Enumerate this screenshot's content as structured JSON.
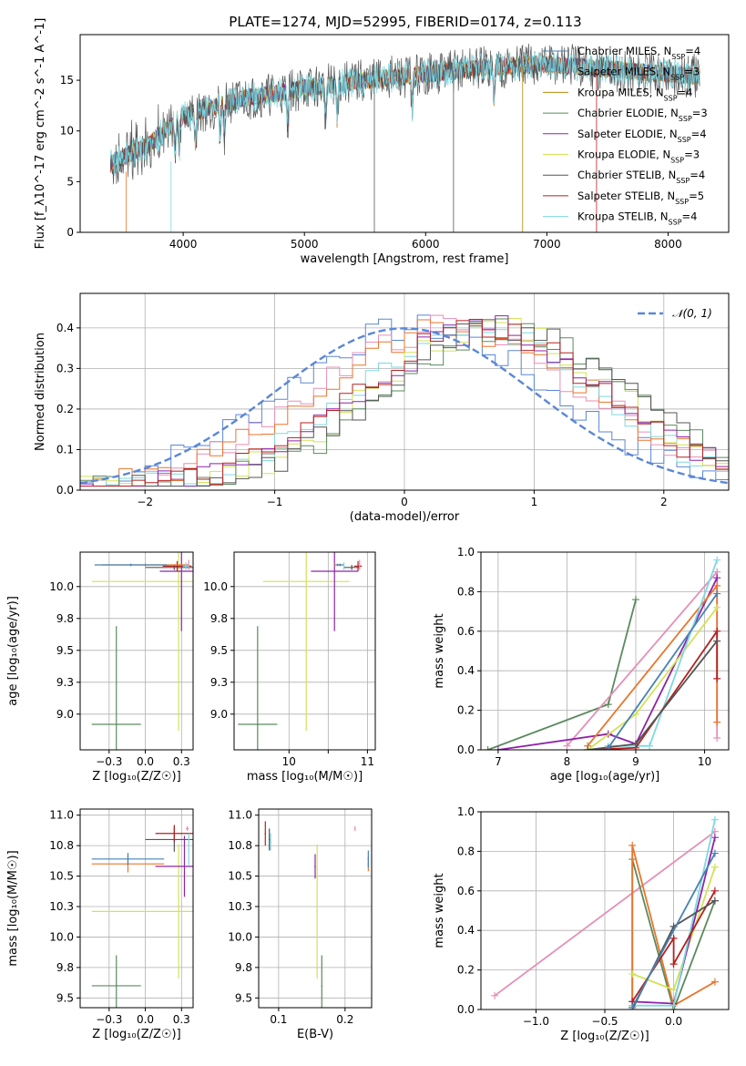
{
  "title": "PLATE=1274, MJD=52995, FIBERID=0174, z=0.113",
  "colors": {
    "chab_miles": "#4682b4",
    "salp_miles": "#e8762c",
    "krou_miles": "#b8860b",
    "chab_elodie": "#5b8a5e",
    "salp_elodie": "#8e24aa",
    "krou_elodie": "#d4e157",
    "chab_stelib": "#555555",
    "salp_stelib": "#b22222",
    "krou_stelib": "#7fd8e0",
    "pink": "#e58fb5",
    "normal": "#5b87d6",
    "grid": "#b0b0b0"
  },
  "legend": [
    {
      "key": "chab_miles",
      "imf": "Chabrier",
      "lib": "MILES",
      "n": "4"
    },
    {
      "key": "salp_miles",
      "imf": "Salpeter",
      "lib": "MILES",
      "n": "3"
    },
    {
      "key": "krou_miles",
      "imf": "Kroupa",
      "lib": "MILES",
      "n": "4"
    },
    {
      "key": "chab_elodie",
      "imf": "Chabrier",
      "lib": "ELODIE",
      "n": "3"
    },
    {
      "key": "salp_elodie",
      "imf": "Salpeter",
      "lib": "ELODIE",
      "n": "4"
    },
    {
      "key": "krou_elodie",
      "imf": "Kroupa",
      "lib": "ELODIE",
      "n": "3"
    },
    {
      "key": "chab_stelib",
      "imf": "Chabrier",
      "lib": "STELIB",
      "n": "4"
    },
    {
      "key": "salp_stelib",
      "imf": "Salpeter",
      "lib": "STELIB",
      "n": "5"
    },
    {
      "key": "krou_stelib",
      "imf": "Kroupa",
      "lib": "STELIB",
      "n": "4"
    }
  ],
  "chart_data": [
    {
      "id": "spectrum",
      "type": "line",
      "xlabel": "wavelength [Angstrom, rest frame]",
      "ylabel": "Flux [f_λ10^-17 erg cm^-2 s^-1 A^-1]",
      "xlim": [
        3150,
        8500
      ],
      "ylim": [
        0,
        19.5
      ],
      "xticks": [
        4000,
        5000,
        6000,
        7000,
        8000
      ],
      "yticks": [
        0,
        5,
        10,
        15
      ],
      "wave_range": [
        3400,
        8260
      ],
      "continuum": [
        [
          3400,
          6.8
        ],
        [
          3700,
          8.5
        ],
        [
          4000,
          11.5
        ],
        [
          4500,
          13.2
        ],
        [
          5000,
          14.2
        ],
        [
          5500,
          15.0
        ],
        [
          6000,
          15.6
        ],
        [
          6500,
          16.3
        ],
        [
          7000,
          16.6
        ],
        [
          7500,
          16.1
        ],
        [
          8000,
          15.6
        ],
        [
          8260,
          15.4
        ]
      ],
      "absorption_lines": [
        3934,
        3968,
        4102,
        4305,
        4340,
        4861,
        5175,
        5270,
        5890,
        6563
      ],
      "spikes": [
        5577,
        6230,
        6800,
        7410
      ]
    },
    {
      "id": "residuals",
      "type": "line",
      "xlabel": "(data-model)/error",
      "ylabel": "Normed distribution",
      "xlim": [
        -2.5,
        2.5
      ],
      "ylim": [
        0,
        0.485
      ],
      "xticks": [
        -2,
        -1,
        0,
        1,
        2
      ],
      "yticks": [
        0.0,
        0.1,
        0.2,
        0.3,
        0.4
      ],
      "legend_label": "𝒩(0, 1)",
      "bin_width": 0.1,
      "model_center": 0.55,
      "model_sigma": 1.0
    },
    {
      "id": "age-vs-Z",
      "type": "scatter",
      "xlabel": "Z [log₁₀(Z/Z☉)]",
      "ylabel": "age  [log₁₀(age/yr)]",
      "xlim": [
        -0.45,
        0.33
      ],
      "ylim": [
        8.72,
        10.27
      ],
      "xticks": [
        -0.25,
        0.0,
        0.25
      ],
      "yticks": [
        9.0,
        9.25,
        9.5,
        9.75,
        10.0
      ],
      "points": [
        {
          "key": "chab_elodie",
          "x": -0.2,
          "y": 8.92,
          "xerr": 0.17,
          "yerr": 0.77
        },
        {
          "key": "krou_elodie",
          "x": 0.23,
          "y": 10.04,
          "xerr": 0.6,
          "yerr": 1.17
        },
        {
          "key": "salp_elodie",
          "x": 0.25,
          "y": 10.12,
          "xerr": 0.15,
          "yerr": 0.47
        },
        {
          "key": "chab_stelib",
          "x": 0.2,
          "y": 10.15,
          "xerr": 0.2,
          "yerr": 0.02
        },
        {
          "key": "salp_stelib",
          "x": 0.22,
          "y": 10.16,
          "xerr": 0.1,
          "yerr": 0.04
        },
        {
          "key": "salp_miles",
          "x": 0.0,
          "y": 10.17,
          "xerr": 0.3,
          "yerr": 0.01
        },
        {
          "key": "chab_miles",
          "x": -0.1,
          "y": 10.17,
          "xerr": 0.25,
          "yerr": 0.01
        },
        {
          "key": "pink",
          "x": 0.3,
          "y": 10.17,
          "xerr": 0.0,
          "yerr": 0.04
        },
        {
          "key": "krou_stelib",
          "x": 0.28,
          "y": 10.16,
          "xerr": 0.02,
          "yerr": 0.03
        }
      ]
    },
    {
      "id": "age-vs-mass",
      "type": "scatter",
      "xlabel": "mass [log₁₀(M/M☉)]",
      "ylabel": "",
      "xlim": [
        9.3,
        11.1
      ],
      "ylim": [
        8.72,
        10.27
      ],
      "xticks": [
        10,
        10.5,
        11
      ],
      "tick_labels": [
        "10",
        "",
        "11"
      ],
      "yticks": [
        9.0,
        9.25,
        9.5,
        9.75,
        10.0
      ],
      "points": [
        {
          "key": "chab_elodie",
          "x": 9.6,
          "y": 8.92,
          "xerr": 0.25,
          "yerr": 0.77
        },
        {
          "key": "krou_elodie",
          "x": 10.22,
          "y": 10.04,
          "xerr": 0.55,
          "yerr": 1.17
        },
        {
          "key": "salp_elodie",
          "x": 10.58,
          "y": 10.12,
          "xerr": 0.3,
          "yerr": 0.47
        },
        {
          "key": "chab_stelib",
          "x": 10.8,
          "y": 10.15,
          "xerr": 0.1,
          "yerr": 0.02
        },
        {
          "key": "salp_stelib",
          "x": 10.88,
          "y": 10.16,
          "xerr": 0.05,
          "yerr": 0.04
        },
        {
          "key": "salp_miles",
          "x": 10.62,
          "y": 10.17,
          "xerr": 0.05,
          "yerr": 0.01
        },
        {
          "key": "chab_miles",
          "x": 10.65,
          "y": 10.17,
          "xerr": 0.05,
          "yerr": 0.01
        },
        {
          "key": "pink",
          "x": 10.9,
          "y": 10.17,
          "xerr": 0.0,
          "yerr": 0.04
        },
        {
          "key": "krou_stelib",
          "x": 10.7,
          "y": 10.16,
          "xerr": 0.0,
          "yerr": 0.03
        }
      ]
    },
    {
      "id": "mass-weight-vs-age",
      "type": "line",
      "xlabel": "age  [log₁₀(age/yr)]",
      "ylabel": "mass weight",
      "xlim": [
        6.75,
        10.35
      ],
      "ylim": [
        0.0,
        1.0
      ],
      "xticks": [
        7,
        8,
        9,
        10
      ],
      "yticks": [
        0.0,
        0.2,
        0.4,
        0.6,
        0.8,
        1.0
      ],
      "series": [
        {
          "key": "chab_elodie",
          "x": [
            6.85,
            8.6,
            9.0
          ],
          "y": [
            0.0,
            0.23,
            0.76
          ]
        },
        {
          "key": "pink",
          "x": [
            8.0,
            10.18,
            10.18
          ],
          "y": [
            0.02,
            0.9,
            0.06
          ]
        },
        {
          "key": "salp_elodie",
          "x": [
            7.0,
            8.6,
            9.0,
            10.18
          ],
          "y": [
            0.0,
            0.08,
            0.03,
            0.87
          ]
        },
        {
          "key": "salp_miles",
          "x": [
            8.3,
            10.18,
            10.18
          ],
          "y": [
            0.02,
            0.83,
            0.14
          ]
        },
        {
          "key": "krou_elodie",
          "x": [
            8.3,
            9.0,
            10.18
          ],
          "y": [
            0.0,
            0.18,
            0.72
          ]
        },
        {
          "key": "krou_stelib",
          "x": [
            8.6,
            9.2,
            10.18
          ],
          "y": [
            0.02,
            0.02,
            0.96
          ]
        },
        {
          "key": "salp_stelib",
          "x": [
            8.3,
            9.0,
            10.18,
            10.18
          ],
          "y": [
            0.0,
            0.01,
            0.6,
            0.36
          ]
        },
        {
          "key": "chab_stelib",
          "x": [
            8.3,
            9.0,
            10.18
          ],
          "y": [
            0.0,
            0.03,
            0.55
          ]
        },
        {
          "key": "chab_miles",
          "x": [
            8.6,
            10.18
          ],
          "y": [
            0.01,
            0.79
          ]
        }
      ]
    },
    {
      "id": "mass-vs-Z",
      "type": "scatter",
      "xlabel": "Z [log₁₀(Z/Z☉)]",
      "ylabel": "mass [log₁₀(M/M☉)]",
      "xlim": [
        -0.45,
        0.33
      ],
      "ylim": [
        9.42,
        11.05
      ],
      "xticks": [
        -0.25,
        0.0,
        0.25
      ],
      "yticks": [
        9.5,
        9.75,
        10.0,
        10.25,
        10.5,
        10.75,
        11.0
      ],
      "points": [
        {
          "key": "chab_elodie",
          "x": -0.2,
          "y": 9.6,
          "xerr": 0.17,
          "yerr": 0.25
        },
        {
          "key": "krou_elodie",
          "x": 0.23,
          "y": 10.21,
          "xerr": 0.6,
          "yerr": 0.55
        },
        {
          "key": "salp_elodie",
          "x": 0.27,
          "y": 10.58,
          "xerr": 0.2,
          "yerr": 0.25
        },
        {
          "key": "salp_miles",
          "x": -0.12,
          "y": 10.6,
          "xerr": 0.25,
          "yerr": 0.07
        },
        {
          "key": "chab_miles",
          "x": -0.12,
          "y": 10.64,
          "xerr": 0.25,
          "yerr": 0.05
        },
        {
          "key": "chab_stelib",
          "x": 0.2,
          "y": 10.8,
          "xerr": 0.2,
          "yerr": 0.1
        },
        {
          "key": "salp_stelib",
          "x": 0.2,
          "y": 10.85,
          "xerr": 0.13,
          "yerr": 0.07
        },
        {
          "key": "krou_stelib",
          "x": 0.3,
          "y": 10.72,
          "xerr": 0.0,
          "yerr": 0.13
        },
        {
          "key": "pink",
          "x": 0.29,
          "y": 10.89,
          "xerr": 0.01,
          "yerr": 0.02
        }
      ]
    },
    {
      "id": "mass-vs-ebv",
      "type": "scatter",
      "xlabel": "E(B-V)",
      "ylabel": "",
      "xlim": [
        0.07,
        0.24
      ],
      "ylim": [
        9.42,
        11.05
      ],
      "xticks": [
        0.1,
        0.2
      ],
      "yticks": [
        9.5,
        9.75,
        10.0,
        10.25,
        10.5,
        10.75,
        11.0
      ],
      "points": [
        {
          "key": "chab_elodie",
          "x": 0.165,
          "y": 9.6,
          "xerr": 0.0,
          "yerr": 0.25
        },
        {
          "key": "krou_elodie",
          "x": 0.158,
          "y": 10.21,
          "xerr": 0.0,
          "yerr": 0.55
        },
        {
          "key": "salp_elodie",
          "x": 0.155,
          "y": 10.58,
          "xerr": 0.0,
          "yerr": 0.1
        },
        {
          "key": "salp_miles",
          "x": 0.235,
          "y": 10.6,
          "xerr": 0.0,
          "yerr": 0.06
        },
        {
          "key": "chab_miles",
          "x": 0.235,
          "y": 10.64,
          "xerr": 0.0,
          "yerr": 0.07
        },
        {
          "key": "salp_stelib",
          "x": 0.08,
          "y": 10.85,
          "xerr": 0.0,
          "yerr": 0.1
        },
        {
          "key": "chab_stelib",
          "x": 0.086,
          "y": 10.8,
          "xerr": 0.0,
          "yerr": 0.09
        },
        {
          "key": "krou_stelib",
          "x": 0.088,
          "y": 10.78,
          "xerr": 0.0,
          "yerr": 0.07
        },
        {
          "key": "pink",
          "x": 0.215,
          "y": 10.89,
          "xerr": 0.0,
          "yerr": 0.02
        }
      ]
    },
    {
      "id": "mass-weight-vs-Z",
      "type": "line",
      "xlabel": "Z [log₁₀(Z/Z☉)]",
      "ylabel": "mass weight",
      "xlim": [
        -1.4,
        0.4
      ],
      "ylim": [
        0.0,
        1.0
      ],
      "xticks": [
        -1.0,
        -0.5,
        0.0
      ],
      "yticks": [
        0.0,
        0.2,
        0.4,
        0.6,
        0.8,
        1.0
      ],
      "series": [
        {
          "key": "pink",
          "x": [
            -1.3,
            0.3
          ],
          "y": [
            0.07,
            0.9
          ]
        },
        {
          "key": "chab_elodie",
          "x": [
            -0.3,
            -0.3,
            0.0,
            0.3
          ],
          "y": [
            0.02,
            0.76,
            0.0,
            0.55
          ]
        },
        {
          "key": "salp_miles",
          "x": [
            -0.3,
            -0.3,
            0.0,
            0.3
          ],
          "y": [
            0.01,
            0.83,
            0.02,
            0.14
          ]
        },
        {
          "key": "krou_elodie",
          "x": [
            -0.3,
            0.0,
            0.3
          ],
          "y": [
            0.18,
            0.1,
            0.72
          ]
        },
        {
          "key": "salp_elodie",
          "x": [
            -0.3,
            0.0,
            0.3
          ],
          "y": [
            0.04,
            0.03,
            0.87
          ]
        },
        {
          "key": "krou_stelib",
          "x": [
            -0.3,
            0.0,
            0.3
          ],
          "y": [
            0.02,
            0.02,
            0.96
          ]
        },
        {
          "key": "salp_stelib",
          "x": [
            -0.3,
            0.0,
            0.0,
            0.3
          ],
          "y": [
            0.04,
            0.36,
            0.23,
            0.6
          ]
        },
        {
          "key": "chab_stelib",
          "x": [
            -0.3,
            0.0,
            0.3
          ],
          "y": [
            0.0,
            0.42,
            0.55
          ]
        },
        {
          "key": "chab_miles",
          "x": [
            -0.3,
            0.3
          ],
          "y": [
            0.01,
            0.79
          ]
        }
      ]
    }
  ]
}
